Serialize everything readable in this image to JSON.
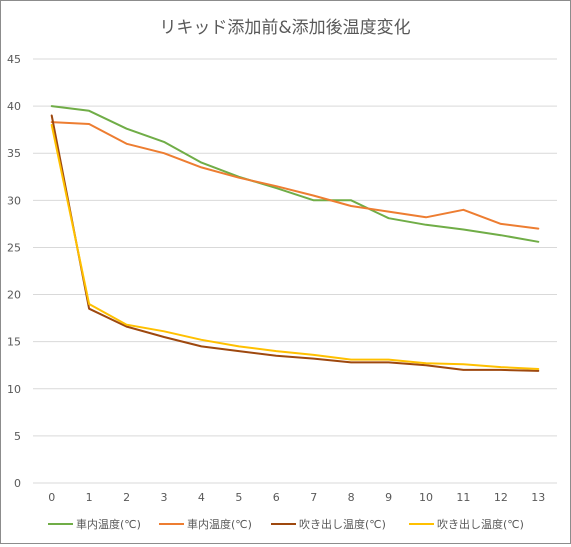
{
  "chart_data": {
    "type": "line",
    "title": "リキッド添加前&添加後温度変化",
    "xlabel": "",
    "ylabel": "",
    "x": [
      0,
      1,
      2,
      3,
      4,
      5,
      6,
      7,
      8,
      9,
      10,
      11,
      12,
      13
    ],
    "ylim": [
      0,
      45
    ],
    "yticks": [
      0,
      5,
      10,
      15,
      20,
      25,
      30,
      35,
      40,
      45
    ],
    "grid": true,
    "legend_position": "bottom",
    "series": [
      {
        "name": "車内温度(℃)",
        "color": "#70ad47",
        "values": [
          40.0,
          39.5,
          37.6,
          36.2,
          34.0,
          32.5,
          31.3,
          30.0,
          30.0,
          28.1,
          27.4,
          26.9,
          26.3,
          25.6
        ]
      },
      {
        "name": "車内温度(℃)",
        "color": "#ed7d31",
        "values": [
          38.3,
          38.1,
          36.0,
          35.0,
          33.5,
          32.4,
          31.5,
          30.5,
          29.4,
          28.8,
          28.2,
          29.0,
          27.5,
          27.0
        ]
      },
      {
        "name": "吹き出し温度(℃)",
        "color": "#9e480e",
        "values": [
          39.0,
          18.5,
          16.6,
          15.5,
          14.5,
          14.0,
          13.5,
          13.2,
          12.8,
          12.8,
          12.5,
          12.0,
          12.0,
          11.9
        ]
      },
      {
        "name": "吹き出し温度(℃)",
        "color": "#ffc000",
        "values": [
          38.0,
          19.0,
          16.8,
          16.1,
          15.2,
          14.5,
          14.0,
          13.6,
          13.1,
          13.1,
          12.7,
          12.6,
          12.3,
          12.1
        ]
      }
    ]
  }
}
